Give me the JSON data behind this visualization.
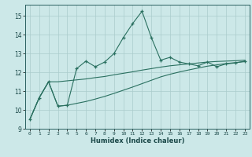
{
  "xlabel": "Humidex (Indice chaleur)",
  "bg_color": "#cce8e8",
  "line_color": "#2a7060",
  "grid_color": "#aacccc",
  "xlim": [
    -0.5,
    23.5
  ],
  "ylim": [
    9,
    15.6
  ],
  "yticks": [
    9,
    10,
    11,
    12,
    13,
    14,
    15
  ],
  "xticks": [
    0,
    1,
    2,
    3,
    4,
    5,
    6,
    7,
    8,
    9,
    10,
    11,
    12,
    13,
    14,
    15,
    16,
    17,
    18,
    19,
    20,
    21,
    22,
    23
  ],
  "s1_x": [
    0,
    1,
    2,
    3,
    4,
    5,
    6,
    7,
    8,
    9,
    10,
    11,
    12,
    13,
    14,
    15,
    16,
    17,
    18,
    19,
    20,
    21,
    22,
    23
  ],
  "s1_y": [
    9.5,
    10.65,
    11.5,
    10.2,
    10.25,
    12.2,
    12.6,
    12.3,
    12.55,
    13.0,
    13.85,
    14.6,
    15.25,
    13.85,
    12.65,
    12.8,
    12.55,
    12.45,
    12.35,
    12.55,
    12.3,
    12.45,
    12.5,
    12.6
  ],
  "s2_x": [
    0,
    1,
    2,
    3,
    4,
    5,
    6,
    7,
    8,
    9,
    10,
    11,
    12,
    13,
    14,
    15,
    16,
    17,
    18,
    19,
    20,
    21,
    22,
    23
  ],
  "s2_y": [
    9.5,
    10.65,
    11.5,
    11.5,
    11.55,
    11.6,
    11.65,
    11.72,
    11.78,
    11.87,
    11.95,
    12.03,
    12.12,
    12.2,
    12.28,
    12.35,
    12.4,
    12.45,
    12.5,
    12.55,
    12.58,
    12.6,
    12.62,
    12.65
  ],
  "s3_x": [
    0,
    1,
    2,
    3,
    4,
    5,
    6,
    7,
    8,
    9,
    10,
    11,
    12,
    13,
    14,
    15,
    16,
    17,
    18,
    19,
    20,
    21,
    22,
    23
  ],
  "s3_y": [
    9.5,
    10.65,
    11.5,
    10.2,
    10.25,
    10.35,
    10.45,
    10.58,
    10.72,
    10.88,
    11.05,
    11.22,
    11.4,
    11.58,
    11.76,
    11.9,
    12.02,
    12.13,
    12.23,
    12.33,
    12.4,
    12.47,
    12.52,
    12.57
  ]
}
